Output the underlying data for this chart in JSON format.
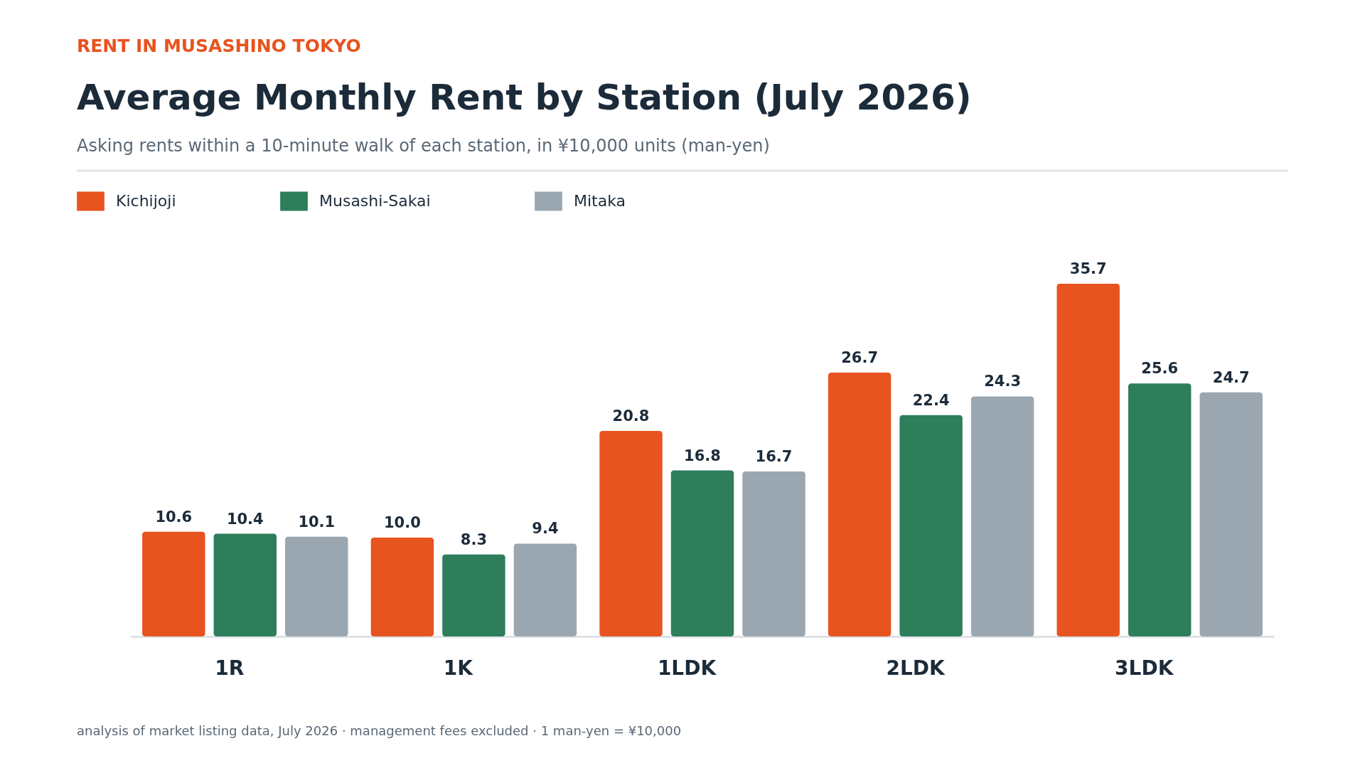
{
  "chart_data": {
    "type": "bar",
    "title": "Average Monthly Rent by Station (July 2026)",
    "subtitle": "Asking rents within a 10-minute walk of each station, in ¥10,000 units (man-yen)",
    "annotations": [
      "RENT IN MUSASHINO TOKYO",
      "analysis of market listing data, July 2026 · management fees excluded · 1 man-yen = ¥10,000"
    ],
    "categories": [
      "1R",
      "1K",
      "1LDK",
      "2LDK",
      "3LDK"
    ],
    "series": [
      {
        "name": "Kichijoji",
        "color": "#e85420",
        "values": [
          10.6,
          10.0,
          20.8,
          26.7,
          35.7
        ],
        "value_labels": [
          "10.6",
          "10.0",
          "20.8",
          "26.7",
          "35.7"
        ]
      },
      {
        "name": "Musashi-Sakai",
        "color": "#2e7d5b",
        "values": [
          10.4,
          8.3,
          16.8,
          22.4,
          25.6
        ],
        "value_labels": [
          "10.4",
          "8.3",
          "16.8",
          "22.4",
          "25.6"
        ]
      },
      {
        "name": "Mitaka",
        "color": "#9ba7b0",
        "values": [
          10.1,
          9.4,
          16.7,
          24.3,
          24.7
        ],
        "value_labels": [
          "10.1",
          "9.4",
          "16.7",
          "24.3",
          "24.7"
        ]
      }
    ],
    "legend": "top left"
  }
}
